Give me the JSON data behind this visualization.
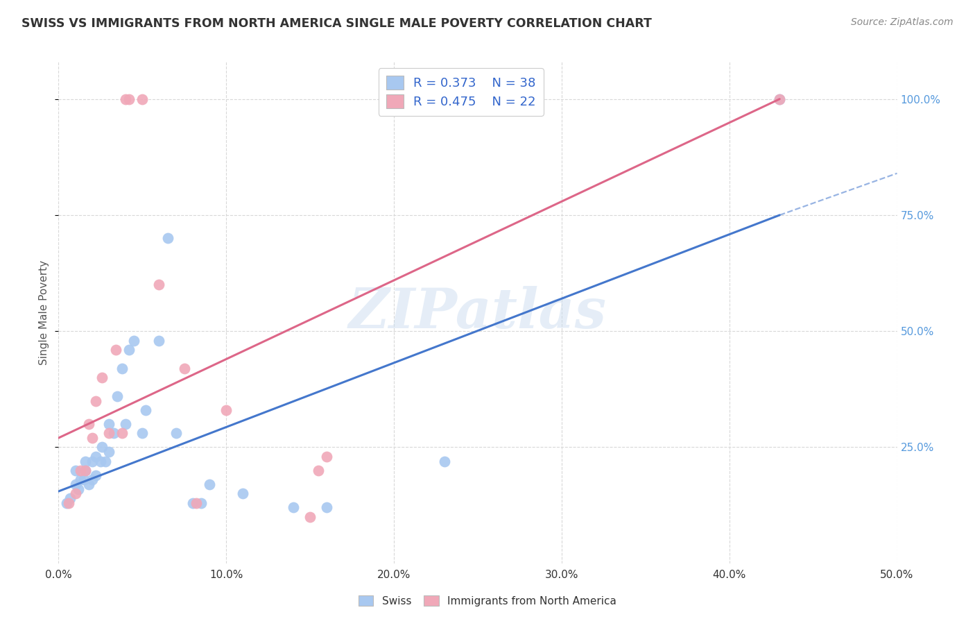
{
  "title": "SWISS VS IMMIGRANTS FROM NORTH AMERICA SINGLE MALE POVERTY CORRELATION CHART",
  "source": "Source: ZipAtlas.com",
  "ylabel": "Single Male Poverty",
  "xlim": [
    0.0,
    0.5
  ],
  "ylim": [
    0.0,
    1.08
  ],
  "ytick_vals": [
    0.25,
    0.5,
    0.75,
    1.0
  ],
  "xtick_vals": [
    0.0,
    0.1,
    0.2,
    0.3,
    0.4,
    0.5
  ],
  "swiss_R": "0.373",
  "swiss_N": "38",
  "immigrant_R": "0.475",
  "immigrant_N": "22",
  "swiss_color": "#a8c8f0",
  "immigrant_color": "#f0a8b8",
  "swiss_line_color": "#4477cc",
  "immigrant_line_color": "#dd6688",
  "swiss_x": [
    0.005,
    0.007,
    0.01,
    0.01,
    0.012,
    0.013,
    0.015,
    0.016,
    0.016,
    0.018,
    0.02,
    0.02,
    0.022,
    0.022,
    0.025,
    0.026,
    0.028,
    0.03,
    0.03,
    0.033,
    0.035,
    0.038,
    0.04,
    0.042,
    0.045,
    0.05,
    0.052,
    0.06,
    0.065,
    0.07,
    0.08,
    0.085,
    0.09,
    0.11,
    0.14,
    0.16,
    0.23,
    0.43
  ],
  "swiss_y": [
    0.13,
    0.14,
    0.17,
    0.2,
    0.16,
    0.18,
    0.18,
    0.2,
    0.22,
    0.17,
    0.18,
    0.22,
    0.19,
    0.23,
    0.22,
    0.25,
    0.22,
    0.24,
    0.3,
    0.28,
    0.36,
    0.42,
    0.3,
    0.46,
    0.48,
    0.28,
    0.33,
    0.48,
    0.7,
    0.28,
    0.13,
    0.13,
    0.17,
    0.15,
    0.12,
    0.12,
    0.22,
    1.0
  ],
  "immigrant_x": [
    0.006,
    0.01,
    0.013,
    0.016,
    0.018,
    0.02,
    0.022,
    0.026,
    0.03,
    0.034,
    0.038,
    0.04,
    0.042,
    0.05,
    0.06,
    0.075,
    0.082,
    0.1,
    0.15,
    0.155,
    0.16,
    0.43
  ],
  "immigrant_y": [
    0.13,
    0.15,
    0.2,
    0.2,
    0.3,
    0.27,
    0.35,
    0.4,
    0.28,
    0.46,
    0.28,
    1.0,
    1.0,
    1.0,
    0.6,
    0.42,
    0.13,
    0.33,
    0.1,
    0.2,
    0.23,
    1.0
  ],
  "swiss_line_x0": 0.0,
  "swiss_line_y0": 0.155,
  "swiss_line_x1": 0.43,
  "swiss_line_y1": 0.75,
  "swiss_line_xdash": 0.5,
  "swiss_line_ydash": 0.84,
  "imm_line_x0": 0.0,
  "imm_line_y0": 0.27,
  "imm_line_x1": 0.43,
  "imm_line_y1": 1.0,
  "watermark": "ZIPatlas",
  "background_color": "#ffffff",
  "grid_color": "#d8d8d8"
}
